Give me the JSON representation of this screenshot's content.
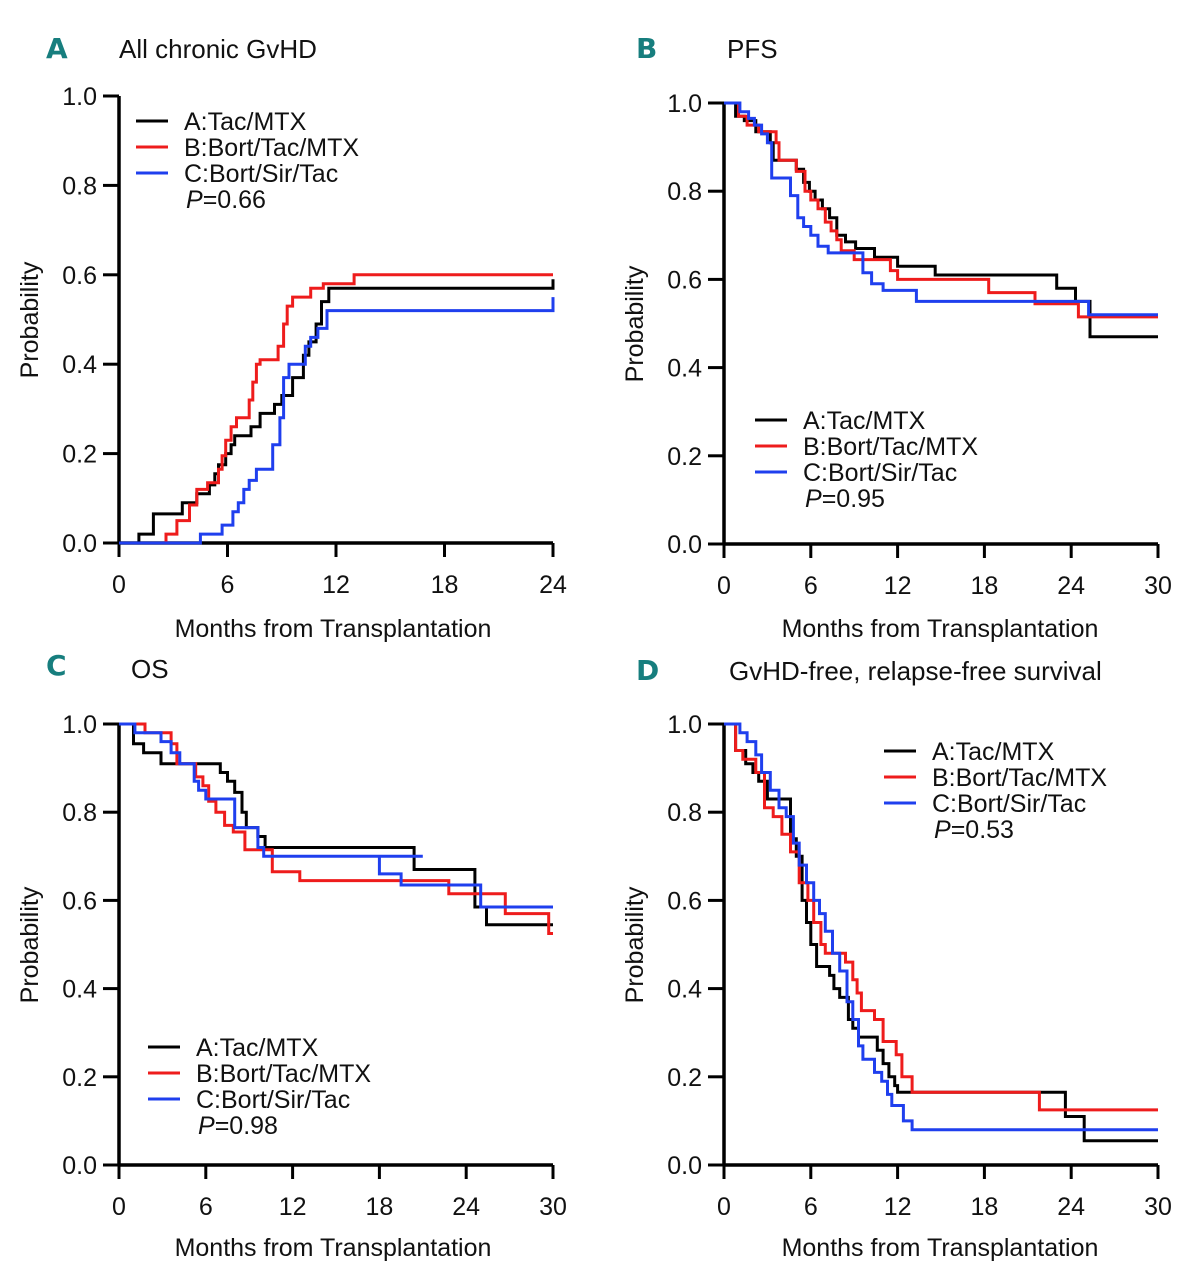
{
  "figure": {
    "series_colors": {
      "A": "#000000",
      "B": "#ee1c1c",
      "C": "#1f3fee"
    },
    "legend_labels": [
      "A:Tac/MTX",
      "B:Bort/Tac/MTX",
      "C:Bort/Sir/Tac"
    ]
  },
  "chart_data": [
    {
      "id": "A",
      "type": "line",
      "step": true,
      "panel_letter": "A",
      "title": "All chronic GvHD",
      "xlabel": "Months from Transplantation",
      "ylabel": "Probability",
      "xlim": [
        0,
        24
      ],
      "ylim": [
        0,
        1
      ],
      "xticks": [
        "0",
        "6",
        "12",
        "18",
        "24"
      ],
      "yticks": [
        "0.0",
        "0.2",
        "0.4",
        "0.6",
        "0.8",
        "1.0"
      ],
      "legend_position": "top-left",
      "p_value": "=0.66",
      "p_label": "P",
      "series": [
        {
          "name": "A:Tac/MTX",
          "key": "A",
          "x": [
            0,
            1.1,
            1.9,
            3.5,
            4.3,
            5.0,
            5.3,
            5.5,
            5.9,
            6.2,
            6.4,
            7.3,
            7.8,
            8.6,
            9.0,
            9.6,
            10.2,
            10.5,
            10.9,
            11.2,
            11.6,
            24
          ],
          "y": [
            0,
            0.02,
            0.065,
            0.09,
            0.11,
            0.13,
            0.155,
            0.175,
            0.2,
            0.22,
            0.24,
            0.26,
            0.29,
            0.31,
            0.33,
            0.37,
            0.42,
            0.45,
            0.49,
            0.54,
            0.57,
            0.59
          ]
        },
        {
          "name": "B:Bort/Tac/MTX",
          "key": "B",
          "x": [
            0,
            2.6,
            3.2,
            3.9,
            4.3,
            4.9,
            5.5,
            5.7,
            5.9,
            6.2,
            6.5,
            7.2,
            7.4,
            7.6,
            7.8,
            8.8,
            9.1,
            9.3,
            9.6,
            10.6,
            11.3,
            13.0,
            24
          ],
          "y": [
            0,
            0.02,
            0.05,
            0.085,
            0.12,
            0.135,
            0.165,
            0.195,
            0.23,
            0.26,
            0.28,
            0.32,
            0.36,
            0.4,
            0.41,
            0.44,
            0.49,
            0.53,
            0.55,
            0.57,
            0.58,
            0.6,
            0.6
          ]
        },
        {
          "name": "C:Bort/Sir/Tac",
          "key": "C",
          "x": [
            0,
            4.5,
            5.7,
            6.3,
            6.6,
            6.9,
            7.2,
            7.6,
            8.5,
            8.9,
            9.1,
            9.4,
            10.3,
            10.6,
            11.0,
            11.5,
            24
          ],
          "y": [
            0,
            0.02,
            0.04,
            0.07,
            0.09,
            0.12,
            0.14,
            0.165,
            0.22,
            0.28,
            0.37,
            0.4,
            0.44,
            0.46,
            0.48,
            0.52,
            0.55
          ]
        }
      ]
    },
    {
      "id": "B",
      "type": "line",
      "step": true,
      "panel_letter": "B",
      "title": "PFS",
      "xlabel": "Months from Transplantation",
      "ylabel": "Probability",
      "xlim": [
        0,
        30
      ],
      "ylim": [
        0,
        1
      ],
      "xticks": [
        "0",
        "6",
        "12",
        "18",
        "24",
        "30"
      ],
      "yticks": [
        "0.0",
        "0.2",
        "0.4",
        "0.6",
        "0.8",
        "1.0"
      ],
      "legend_position": "bottom-left",
      "p_value": "=0.95",
      "p_label": "P",
      "series": [
        {
          "name": "A:Tac/MTX",
          "key": "A",
          "x": [
            0,
            0.8,
            1.4,
            2.2,
            3.2,
            3.4,
            5.0,
            5.5,
            5.9,
            6.3,
            6.8,
            7.3,
            7.8,
            8.4,
            9.1,
            10.4,
            12.0,
            14.6,
            23.0,
            24.3,
            25.3,
            30
          ],
          "y": [
            1,
            0.97,
            0.96,
            0.935,
            0.91,
            0.87,
            0.85,
            0.82,
            0.8,
            0.78,
            0.76,
            0.74,
            0.7,
            0.685,
            0.67,
            0.65,
            0.63,
            0.61,
            0.58,
            0.55,
            0.47,
            0.47
          ]
        },
        {
          "name": "B:Bort/Tac/MTX",
          "key": "B",
          "x": [
            0,
            1.0,
            1.6,
            2.4,
            3.6,
            3.8,
            5.0,
            5.6,
            6.0,
            6.5,
            7.0,
            7.4,
            7.8,
            8.1,
            9.0,
            11.5,
            12.0,
            18.3,
            21.5,
            24.5,
            30
          ],
          "y": [
            1,
            0.97,
            0.95,
            0.935,
            0.91,
            0.87,
            0.845,
            0.8,
            0.78,
            0.76,
            0.73,
            0.71,
            0.69,
            0.665,
            0.645,
            0.62,
            0.6,
            0.57,
            0.545,
            0.515,
            0.515
          ]
        },
        {
          "name": "C:Bort/Sir/Tac",
          "key": "C",
          "x": [
            0,
            1.1,
            1.7,
            2.1,
            2.6,
            3.0,
            3.3,
            4.6,
            5.1,
            5.5,
            6.0,
            6.5,
            7.2,
            7.9,
            9.6,
            10.2,
            11.0,
            11.5,
            13.3,
            25.2,
            30
          ],
          "y": [
            1,
            0.98,
            0.965,
            0.95,
            0.93,
            0.91,
            0.83,
            0.79,
            0.74,
            0.72,
            0.7,
            0.675,
            0.66,
            0.66,
            0.615,
            0.59,
            0.575,
            0.575,
            0.55,
            0.52,
            0.52
          ]
        }
      ]
    },
    {
      "id": "C",
      "type": "line",
      "step": true,
      "panel_letter": "C",
      "title": "OS",
      "xlabel": "Months from Transplantation",
      "ylabel": "Probability",
      "xlim": [
        0,
        30
      ],
      "ylim": [
        0,
        1
      ],
      "xticks": [
        "0",
        "6",
        "12",
        "18",
        "24",
        "30"
      ],
      "yticks": [
        "0.0",
        "0.2",
        "0.4",
        "0.6",
        "0.8",
        "1.0"
      ],
      "legend_position": "bottom-left",
      "p_value": "=0.98",
      "p_label": "P",
      "series": [
        {
          "name": "A:Tac/MTX",
          "key": "A",
          "x": [
            0,
            1.0,
            1.7,
            2.9,
            7.0,
            7.5,
            8.0,
            8.5,
            8.8,
            9.6,
            10.1,
            10.5,
            20.4,
            24.6,
            25.4,
            30
          ],
          "y": [
            1,
            0.955,
            0.935,
            0.91,
            0.89,
            0.87,
            0.845,
            0.8,
            0.765,
            0.745,
            0.72,
            0.72,
            0.67,
            0.585,
            0.545,
            0.545
          ]
        },
        {
          "name": "B:Bort/Tac/MTX",
          "key": "B",
          "x": [
            0,
            1.8,
            3.6,
            4.0,
            5.3,
            5.8,
            6.2,
            6.7,
            7.3,
            7.9,
            8.7,
            10.6,
            12.5,
            22.8,
            26.7,
            29.7,
            30
          ],
          "y": [
            1,
            0.98,
            0.955,
            0.91,
            0.88,
            0.86,
            0.825,
            0.8,
            0.77,
            0.755,
            0.715,
            0.665,
            0.645,
            0.615,
            0.57,
            0.525,
            0.525
          ]
        },
        {
          "name": "C:Bort/Sir/Tac",
          "key": "C",
          "x": [
            0,
            1.1,
            2.9,
            3.6,
            4.2,
            5.2,
            5.5,
            6.0,
            8.0,
            9.6,
            10.0,
            10.7,
            21.0,
            18.0,
            19.5,
            25.0,
            30
          ],
          "y": [
            1,
            0.98,
            0.96,
            0.935,
            0.91,
            0.87,
            0.85,
            0.83,
            0.765,
            0.72,
            0.7,
            0.7,
            0.7,
            0.66,
            0.635,
            0.585,
            0.585
          ]
        }
      ]
    },
    {
      "id": "D",
      "type": "line",
      "step": true,
      "panel_letter": "D",
      "title": "GvHD-free, relapse-free survival",
      "xlabel": "Months from Transplantation",
      "ylabel": "Probability",
      "xlim": [
        0,
        30
      ],
      "ylim": [
        0,
        1
      ],
      "xticks": [
        "0",
        "6",
        "12",
        "18",
        "24",
        "30"
      ],
      "yticks": [
        "0.0",
        "0.2",
        "0.4",
        "0.6",
        "0.8",
        "1.0"
      ],
      "legend_position": "top-right",
      "p_value": "=0.53",
      "p_label": "P",
      "series": [
        {
          "name": "A:Tac/MTX",
          "key": "A",
          "x": [
            0,
            0.8,
            1.5,
            2.0,
            2.4,
            3.0,
            4.6,
            5.0,
            5.4,
            5.7,
            6.0,
            6.4,
            7.3,
            7.6,
            8.0,
            8.6,
            8.9,
            9.3,
            10.6,
            11.0,
            11.4,
            11.8,
            12.0,
            23.6,
            24.9,
            30
          ],
          "y": [
            1,
            0.94,
            0.91,
            0.89,
            0.87,
            0.83,
            0.74,
            0.7,
            0.6,
            0.55,
            0.5,
            0.45,
            0.43,
            0.4,
            0.38,
            0.33,
            0.31,
            0.29,
            0.26,
            0.23,
            0.2,
            0.18,
            0.165,
            0.11,
            0.055,
            0.055
          ]
        },
        {
          "name": "B:Bort/Tac/MTX",
          "key": "B",
          "x": [
            0,
            0.8,
            1.3,
            2.2,
            2.8,
            3.4,
            4.0,
            4.6,
            5.2,
            5.8,
            6.2,
            6.7,
            7.0,
            8.4,
            8.9,
            9.2,
            9.5,
            10.4,
            11.0,
            11.9,
            12.3,
            13.0,
            21.8,
            30
          ],
          "y": [
            1,
            0.94,
            0.92,
            0.89,
            0.81,
            0.79,
            0.75,
            0.71,
            0.64,
            0.6,
            0.55,
            0.5,
            0.48,
            0.46,
            0.42,
            0.39,
            0.35,
            0.33,
            0.28,
            0.25,
            0.2,
            0.165,
            0.125,
            0.125
          ]
        },
        {
          "name": "C:Bort/Sir/Tac",
          "key": "C",
          "x": [
            0,
            1.1,
            1.6,
            2.2,
            2.6,
            3.2,
            3.8,
            4.3,
            4.8,
            5.2,
            5.7,
            6.2,
            6.6,
            7.0,
            7.5,
            8.0,
            8.5,
            8.9,
            9.3,
            9.6,
            10.4,
            10.9,
            11.3,
            11.6,
            12.4,
            13.0,
            30
          ],
          "y": [
            1,
            0.98,
            0.96,
            0.93,
            0.89,
            0.85,
            0.81,
            0.79,
            0.73,
            0.68,
            0.64,
            0.6,
            0.57,
            0.53,
            0.48,
            0.44,
            0.37,
            0.33,
            0.27,
            0.24,
            0.21,
            0.19,
            0.16,
            0.135,
            0.1,
            0.08,
            0.08
          ]
        }
      ]
    }
  ]
}
